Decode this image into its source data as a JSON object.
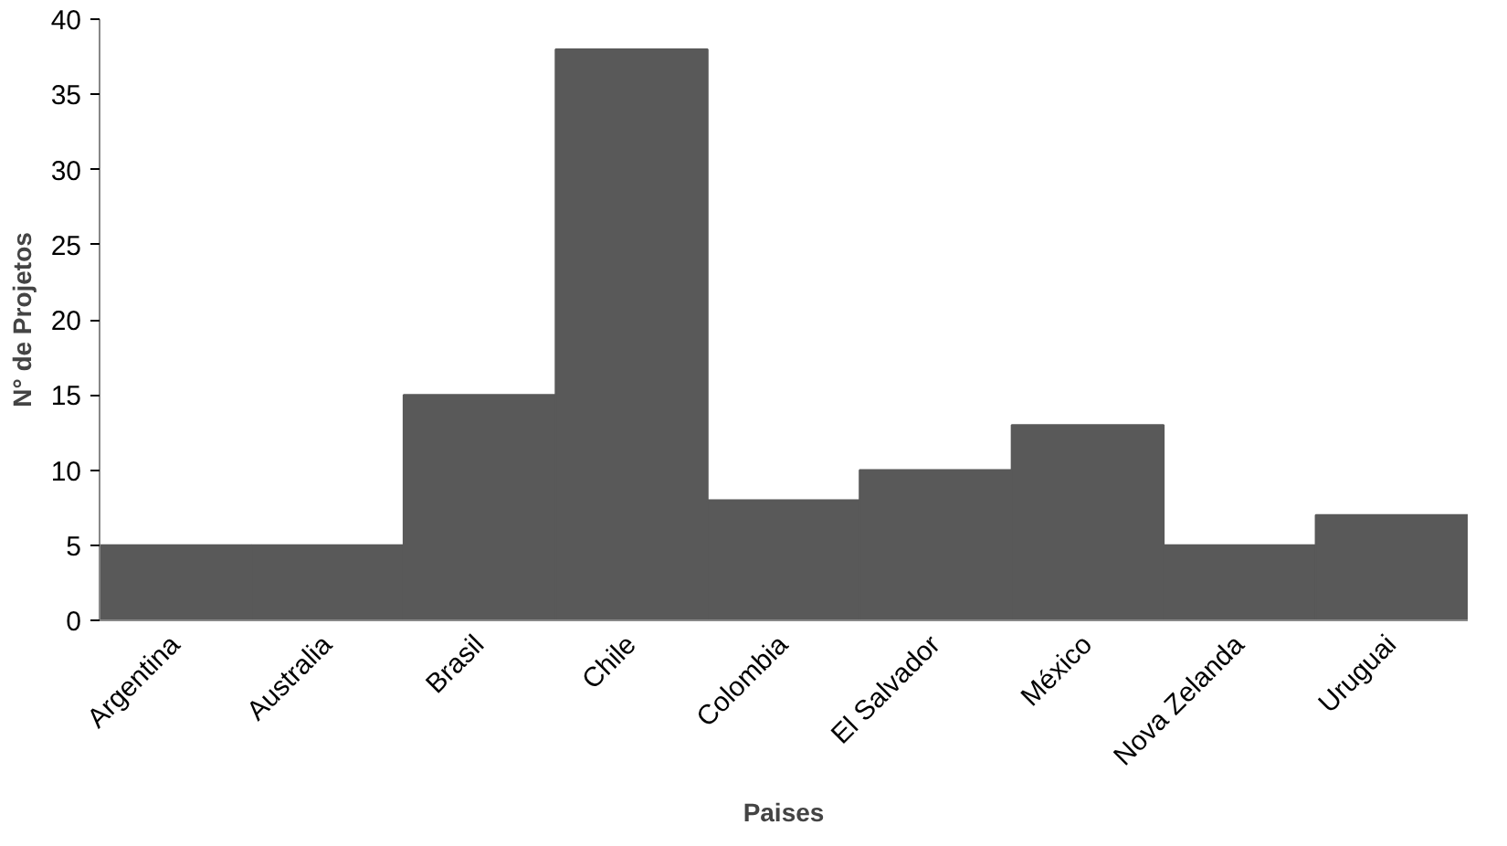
{
  "chart_data": {
    "type": "bar",
    "xlabel": "Paises",
    "ylabel": "N° de Projetos",
    "categories": [
      "Argentina",
      "Australia",
      "Brasil",
      "Chile",
      "Colombia",
      "El Salvador",
      "México",
      "Nova Zelanda",
      "Uruguai"
    ],
    "values": [
      5,
      5,
      15,
      38,
      8,
      10,
      13,
      5,
      7
    ],
    "color": "#595959",
    "ylim": [
      0,
      40
    ],
    "yticks": [
      0,
      5,
      10,
      15,
      20,
      25,
      30,
      35,
      40
    ],
    "grid": false
  }
}
